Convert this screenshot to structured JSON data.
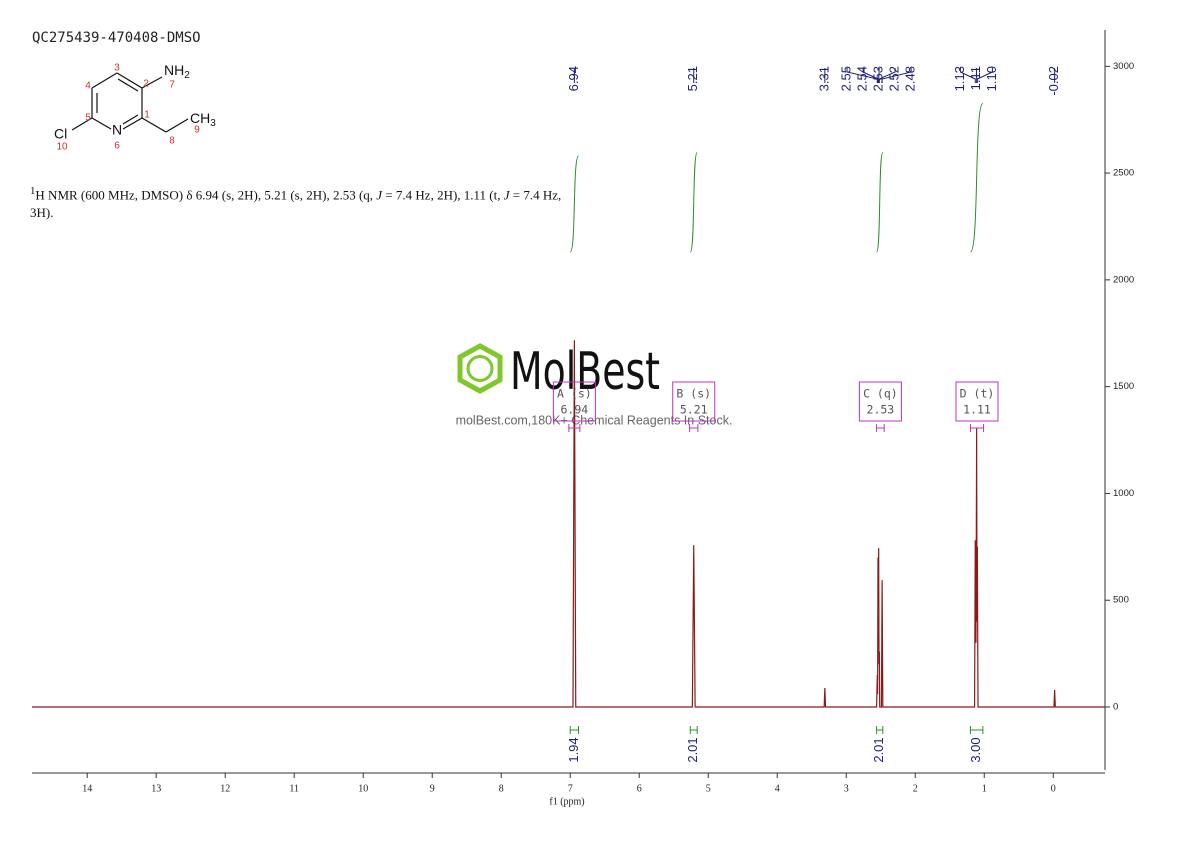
{
  "chart_data": {
    "type": "line",
    "title": "QC275439-470408-DMSO",
    "description": [
      "1",
      "H NMR (600 MHz, DMSO) δ 6.94 (s, 2H), 5.21 (s, 2H), 2.53 (q, ",
      "J",
      " = 7.4 Hz, 2H), 1.11 (t, ",
      "J",
      " = 7.4 Hz,",
      "3H)."
    ],
    "structure": {
      "amine": "NH",
      "amine_sub": "2",
      "chlorine": "Cl",
      "nitrogen": "N",
      "methyl": "CH",
      "methyl_sub": "3",
      "numbers": [
        1,
        2,
        3,
        4,
        5,
        6,
        7,
        8,
        9,
        10
      ]
    },
    "x_label": "f1 (ppm)",
    "color": "#8b1a1a",
    "x": [
      14.8,
      6.96,
      6.94,
      6.92,
      5.23,
      5.21,
      5.19,
      3.32,
      3.31,
      3.3,
      2.56,
      2.55,
      2.545,
      2.54,
      2.535,
      2.53,
      2.525,
      2.52,
      2.515,
      2.49,
      2.48,
      2.47,
      1.14,
      1.13,
      1.12,
      1.11,
      1.105,
      1.1,
      1.09,
      -0.01,
      -0.02,
      -0.03,
      -0.75
    ],
    "values": [
      0,
      0,
      1717,
      0,
      0,
      758,
      0,
      0,
      89,
      0,
      0,
      150,
      60,
      700,
      300,
      744,
      200,
      260,
      0,
      0,
      594,
      0,
      0,
      781,
      300,
      1306,
      400,
      750,
      0,
      0,
      80,
      0,
      0
    ],
    "xlim": [
      14.8,
      -0.75
    ],
    "xticks": [
      14,
      13,
      12,
      11,
      10,
      9,
      8,
      7,
      6,
      5,
      4,
      3,
      2,
      1,
      0
    ],
    "ylim": [
      -295,
      3170
    ],
    "yticks": [
      0,
      500,
      1000,
      1500,
      2000,
      2500,
      3000
    ],
    "peak_labels": [
      "6.94",
      "5.21",
      "3.31",
      "2.55",
      "2.54",
      "2.53",
      "2.52",
      "2.48",
      "1.13",
      "1.11",
      "1.10",
      "-0.02"
    ],
    "integrals": {
      "ranges": [
        [
          7.0,
          6.88
        ],
        [
          5.26,
          5.16
        ],
        [
          2.56,
          2.47
        ],
        [
          1.2,
          1.02
        ]
      ],
      "values": [
        1.94,
        2.01,
        2.01,
        3
      ],
      "value_labels": [
        "1.94",
        "2.01",
        "2.01",
        "3.00"
      ]
    },
    "multiplets": [
      {
        "label": "A (s)",
        "shift": "6.94",
        "range": [
          7.02,
          6.86
        ]
      },
      {
        "label": "B (s)",
        "shift": "5.21",
        "range": [
          5.27,
          5.15
        ]
      },
      {
        "label": "C (q)",
        "shift": "2.53",
        "range": [
          2.56,
          2.45
        ]
      },
      {
        "label": "D (t)",
        "shift": "1.11",
        "range": [
          1.2,
          1.01
        ]
      }
    ],
    "watermark": {
      "brand": "MolBest",
      "tagline": "molBest.com,180K+ Chemical Reagents In Stock."
    }
  }
}
